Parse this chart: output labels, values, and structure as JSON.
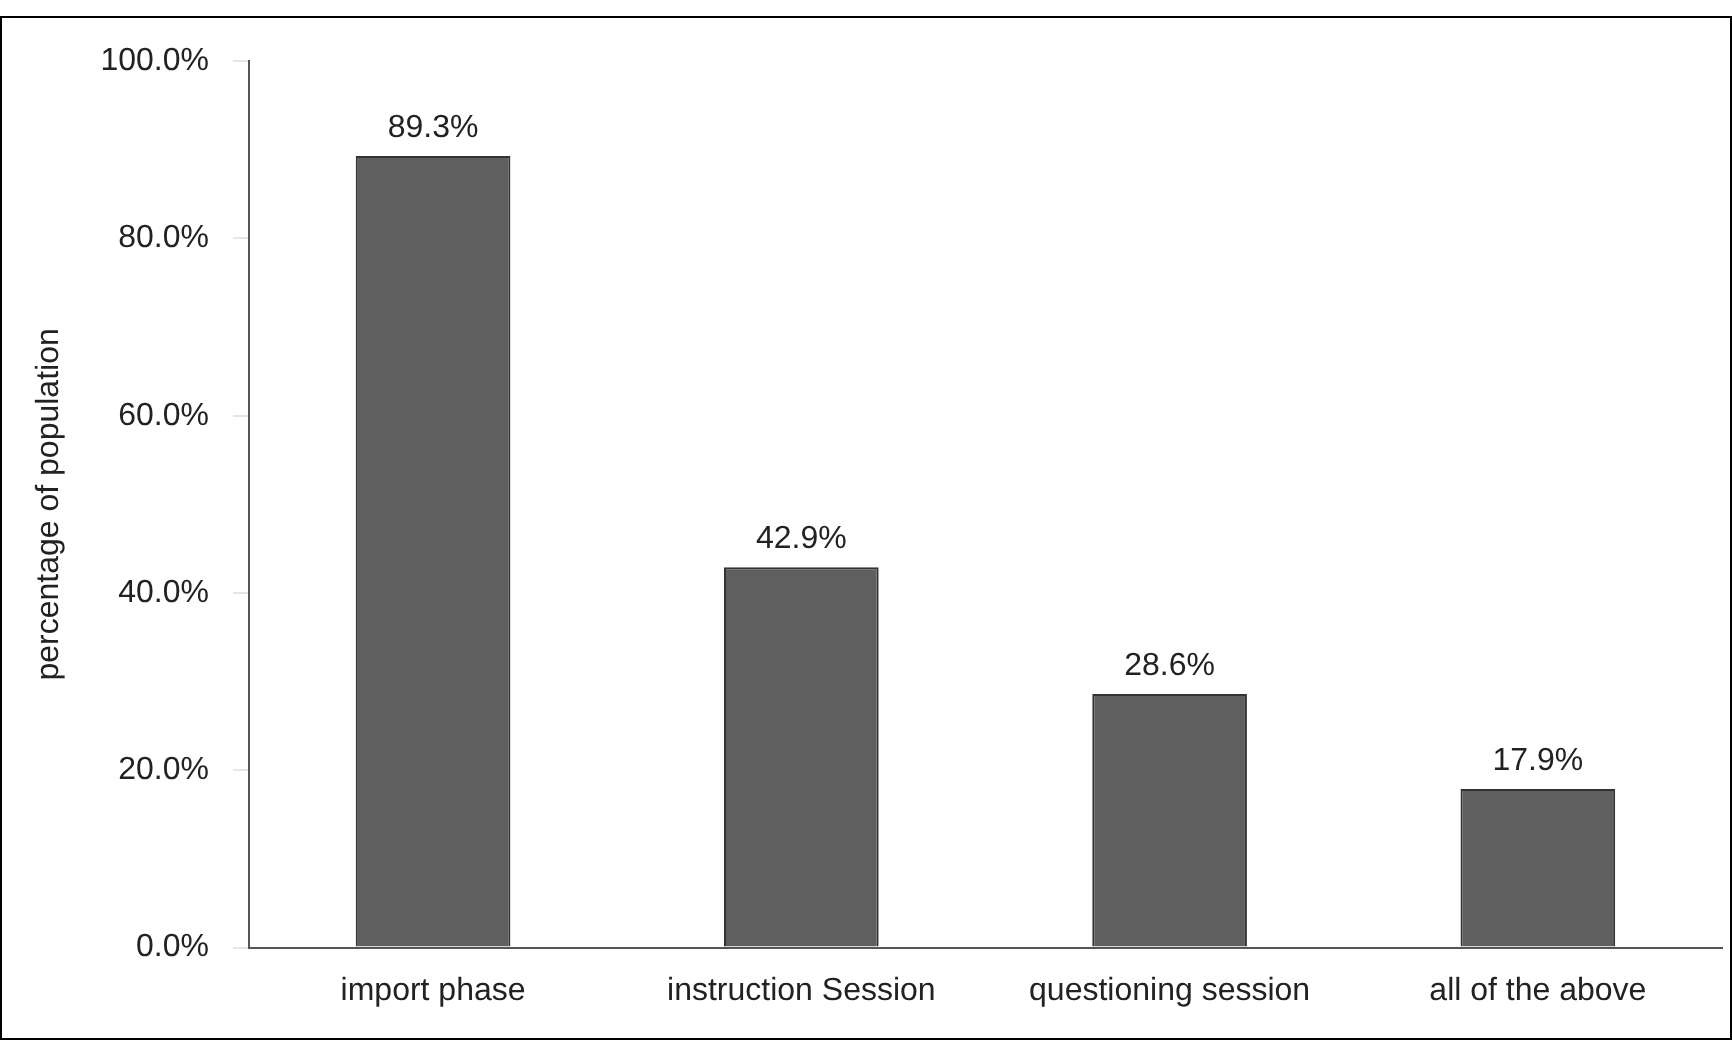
{
  "chart_data": {
    "type": "bar",
    "ylabel": "percentage of population",
    "categories": [
      "import phase",
      "instruction Session",
      "questioning session",
      "all of the above"
    ],
    "values": [
      89.3,
      42.9,
      28.6,
      17.9
    ],
    "color": "#5f5f5f",
    "value_labels": [
      "89.3%",
      "42.9%",
      "28.6%",
      "17.9%"
    ],
    "ylim": [
      0,
      100
    ],
    "yticks": [
      {
        "value": 0,
        "label": "0.0%"
      },
      {
        "value": 20,
        "label": "20.0%"
      },
      {
        "value": 40,
        "label": "40.0%"
      },
      {
        "value": 60,
        "label": "60.0%"
      },
      {
        "value": 80,
        "label": "80.0%"
      },
      {
        "value": 100,
        "label": "100.0%"
      }
    ],
    "grid": false,
    "legend": false
  }
}
